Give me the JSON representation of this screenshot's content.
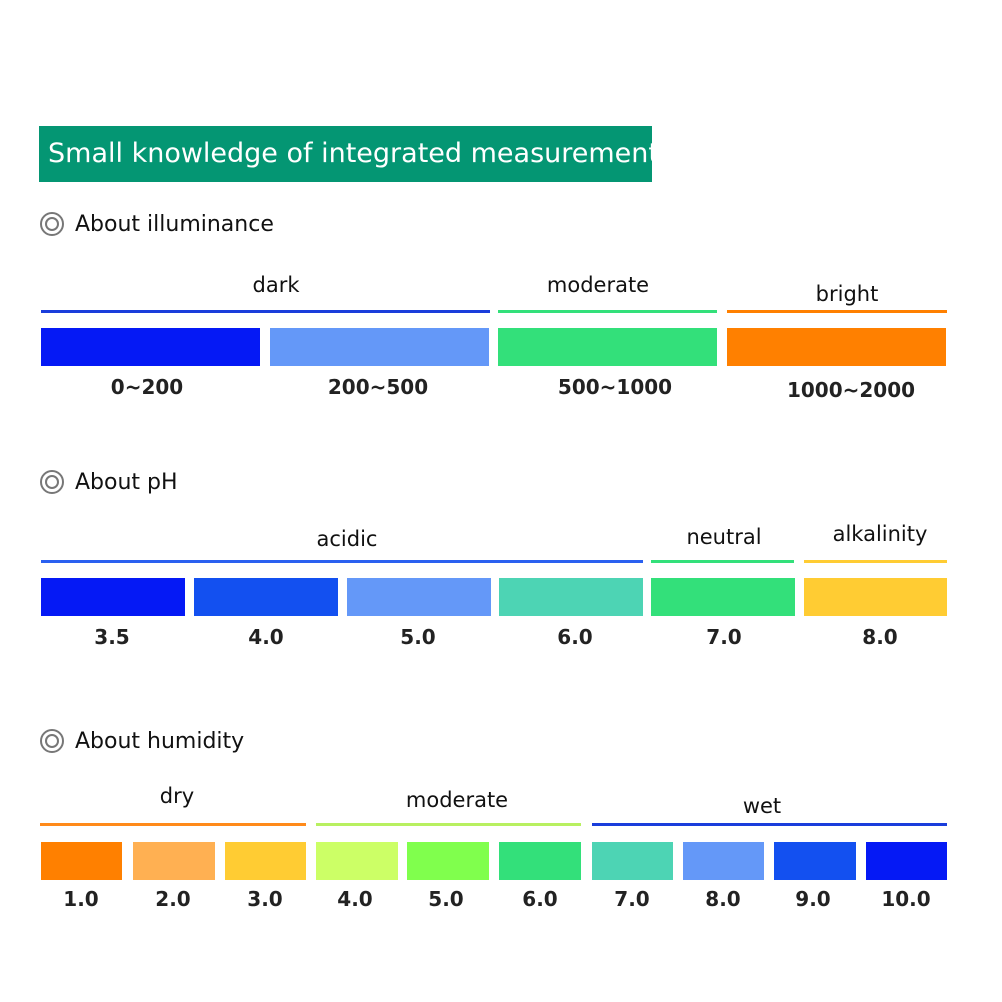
{
  "title": "Small knowledge of integrated measurement",
  "icon": "target-icon",
  "sections": {
    "illuminance": {
      "heading": "About illuminance",
      "categories": [
        {
          "label": "dark",
          "color": "#1a3ddb"
        },
        {
          "label": "moderate",
          "color": "#33e07a"
        },
        {
          "label": "bright",
          "color": "#ff8000"
        }
      ],
      "swatches": [
        {
          "value": "0~200",
          "color": "#0519f5"
        },
        {
          "value": "200~500",
          "color": "#6498f8"
        },
        {
          "value": "500~1000",
          "color": "#33e07a"
        },
        {
          "value": "1000~2000",
          "color": "#ff8000"
        }
      ]
    },
    "ph": {
      "heading": "About pH",
      "categories": [
        {
          "label": "acidic",
          "color": "#2a60f0"
        },
        {
          "label": "neutral",
          "color": "#33e07a"
        },
        {
          "label": "alkalinity",
          "color": "#ffcc33"
        }
      ],
      "swatches": [
        {
          "value": "3.5",
          "color": "#0519f5"
        },
        {
          "value": "4.0",
          "color": "#1350f0"
        },
        {
          "value": "5.0",
          "color": "#6498f8"
        },
        {
          "value": "6.0",
          "color": "#4dd4b4"
        },
        {
          "value": "7.0",
          "color": "#33e07a"
        },
        {
          "value": "8.0",
          "color": "#ffcc33"
        }
      ]
    },
    "humidity": {
      "heading": "About humidity",
      "categories": [
        {
          "label": "dry",
          "color": "#ff8a1a"
        },
        {
          "label": "moderate",
          "color": "#b8f060"
        },
        {
          "label": "wet",
          "color": "#1a3ddb"
        }
      ],
      "swatches": [
        {
          "value": "1.0",
          "color": "#ff8000"
        },
        {
          "value": "2.0",
          "color": "#ffb052"
        },
        {
          "value": "3.0",
          "color": "#ffcc33"
        },
        {
          "value": "4.0",
          "color": "#ccff66"
        },
        {
          "value": "5.0",
          "color": "#80ff4d"
        },
        {
          "value": "6.0",
          "color": "#33e07a"
        },
        {
          "value": "7.0",
          "color": "#4dd4b4"
        },
        {
          "value": "8.0",
          "color": "#6498f8"
        },
        {
          "value": "9.0",
          "color": "#1350f0"
        },
        {
          "value": "10.0",
          "color": "#0519f5"
        }
      ]
    }
  }
}
